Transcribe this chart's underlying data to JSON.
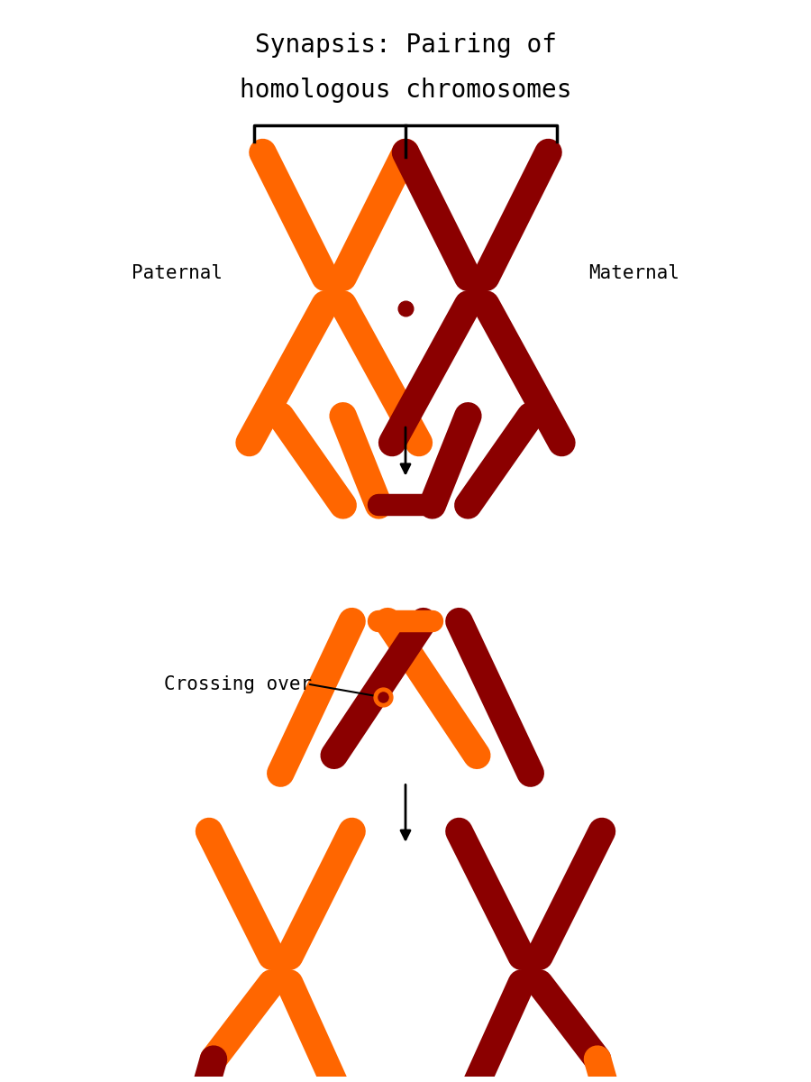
{
  "title_line1": "Synapsis: Pairing of",
  "title_line2": "homologous chromosomes",
  "paternal_label": "Paternal",
  "maternal_label": "Maternal",
  "crossing_over_label": "Crossing over",
  "orange_color": "#FF6600",
  "dark_red_color": "#8B0000",
  "background_color": "#FFFFFF",
  "text_color": "#000000",
  "title_fontsize": 20,
  "label_fontsize": 15,
  "font_family": "monospace",
  "lw_chrom": 22
}
